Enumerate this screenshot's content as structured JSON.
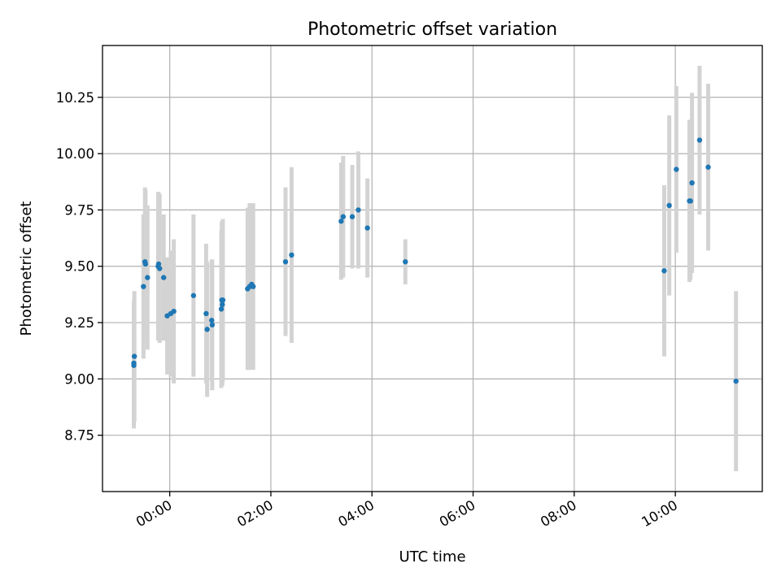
{
  "chart_data": {
    "type": "scatter",
    "title": "Photometric offset variation",
    "xlabel": "UTC time",
    "ylabel": "Photometric offset",
    "x_unit": "hours",
    "xlim": [
      -1.33,
      11.72
    ],
    "ylim": [
      8.5,
      10.48
    ],
    "grid": true,
    "x_ticks": [
      {
        "value": 0,
        "label": "00:00"
      },
      {
        "value": 2,
        "label": "02:00"
      },
      {
        "value": 4,
        "label": "04:00"
      },
      {
        "value": 6,
        "label": "06:00"
      },
      {
        "value": 8,
        "label": "08:00"
      },
      {
        "value": 10,
        "label": "10:00"
      }
    ],
    "y_ticks": [
      {
        "value": 8.75,
        "label": "8.75"
      },
      {
        "value": 9.0,
        "label": "9.00"
      },
      {
        "value": 9.25,
        "label": "9.25"
      },
      {
        "value": 9.5,
        "label": "9.50"
      },
      {
        "value": 9.75,
        "label": "9.75"
      },
      {
        "value": 10.0,
        "label": "10.00"
      },
      {
        "value": 10.25,
        "label": "10.25"
      }
    ],
    "colors": {
      "points": "#1f77b4",
      "errorbars": "#d3d3d3"
    },
    "points": [
      {
        "x": -0.71,
        "y": 9.07,
        "yerr": 0.28
      },
      {
        "x": -0.71,
        "y": 9.06,
        "yerr": 0.28
      },
      {
        "x": -0.7,
        "y": 9.1,
        "yerr": 0.29
      },
      {
        "x": -0.52,
        "y": 9.41,
        "yerr": 0.32
      },
      {
        "x": -0.49,
        "y": 9.52,
        "yerr": 0.33
      },
      {
        "x": -0.48,
        "y": 9.51,
        "yerr": 0.33
      },
      {
        "x": -0.44,
        "y": 9.45,
        "yerr": 0.32
      },
      {
        "x": -0.23,
        "y": 9.5,
        "yerr": 0.33
      },
      {
        "x": -0.22,
        "y": 9.51,
        "yerr": 0.32
      },
      {
        "x": -0.2,
        "y": 9.49,
        "yerr": 0.33
      },
      {
        "x": -0.12,
        "y": 9.45,
        "yerr": 0.28
      },
      {
        "x": -0.05,
        "y": 9.28,
        "yerr": 0.26
      },
      {
        "x": 0.02,
        "y": 9.29,
        "yerr": 0.28
      },
      {
        "x": 0.08,
        "y": 9.3,
        "yerr": 0.32
      },
      {
        "x": 0.47,
        "y": 9.37,
        "yerr": 0.36
      },
      {
        "x": 0.72,
        "y": 9.29,
        "yerr": 0.31
      },
      {
        "x": 0.74,
        "y": 9.22,
        "yerr": 0.3
      },
      {
        "x": 0.83,
        "y": 9.26,
        "yerr": 0.27
      },
      {
        "x": 0.84,
        "y": 9.24,
        "yerr": 0.29
      },
      {
        "x": 1.02,
        "y": 9.31,
        "yerr": 0.35
      },
      {
        "x": 1.03,
        "y": 9.35,
        "yerr": 0.35
      },
      {
        "x": 1.04,
        "y": 9.33,
        "yerr": 0.36
      },
      {
        "x": 1.05,
        "y": 9.35,
        "yerr": 0.36
      },
      {
        "x": 1.54,
        "y": 9.4,
        "yerr": 0.36
      },
      {
        "x": 1.58,
        "y": 9.41,
        "yerr": 0.37
      },
      {
        "x": 1.62,
        "y": 9.42,
        "yerr": 0.36
      },
      {
        "x": 1.65,
        "y": 9.41,
        "yerr": 0.37
      },
      {
        "x": 2.29,
        "y": 9.52,
        "yerr": 0.33
      },
      {
        "x": 2.41,
        "y": 9.55,
        "yerr": 0.39
      },
      {
        "x": 3.39,
        "y": 9.7,
        "yerr": 0.26
      },
      {
        "x": 3.43,
        "y": 9.72,
        "yerr": 0.27
      },
      {
        "x": 3.61,
        "y": 9.72,
        "yerr": 0.23
      },
      {
        "x": 3.73,
        "y": 9.75,
        "yerr": 0.26
      },
      {
        "x": 3.91,
        "y": 9.67,
        "yerr": 0.22
      },
      {
        "x": 4.66,
        "y": 9.52,
        "yerr": 0.1
      },
      {
        "x": 9.78,
        "y": 9.48,
        "yerr": 0.38
      },
      {
        "x": 9.88,
        "y": 9.77,
        "yerr": 0.4
      },
      {
        "x": 10.02,
        "y": 9.93,
        "yerr": 0.37
      },
      {
        "x": 10.28,
        "y": 9.79,
        "yerr": 0.36
      },
      {
        "x": 10.3,
        "y": 9.79,
        "yerr": 0.35
      },
      {
        "x": 10.33,
        "y": 9.87,
        "yerr": 0.4
      },
      {
        "x": 10.48,
        "y": 10.06,
        "yerr": 0.33
      },
      {
        "x": 10.65,
        "y": 9.94,
        "yerr": 0.37
      },
      {
        "x": 11.2,
        "y": 8.99,
        "yerr": 0.4
      }
    ]
  }
}
